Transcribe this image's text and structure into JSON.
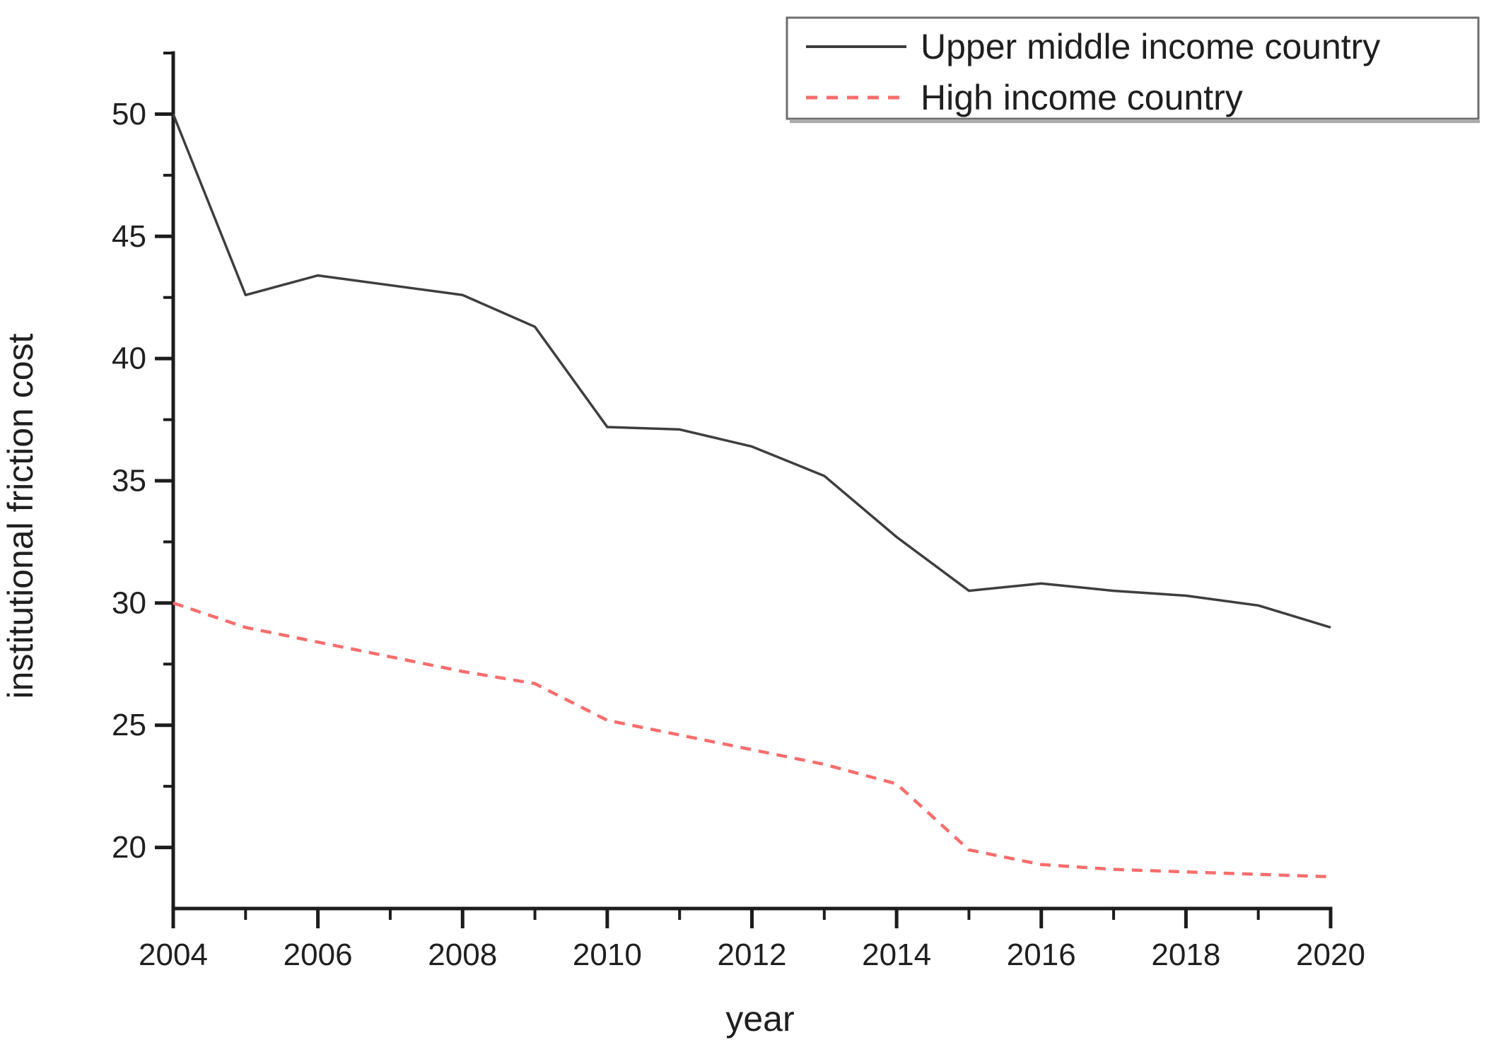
{
  "chart_data": {
    "type": "line",
    "title": "",
    "xlabel": "year",
    "ylabel": "institutional friction cost",
    "x": [
      2004,
      2005,
      2006,
      2007,
      2008,
      2009,
      2010,
      2011,
      2012,
      2013,
      2014,
      2015,
      2016,
      2017,
      2018,
      2019,
      2020
    ],
    "series": [
      {
        "name": "Upper middle income country",
        "color": "#3e3e3e",
        "line_style": "solid",
        "line_width": 3.5,
        "values": [
          50.0,
          42.6,
          43.4,
          43.0,
          42.6,
          41.3,
          37.2,
          37.1,
          36.4,
          35.2,
          32.7,
          30.5,
          30.8,
          30.5,
          30.3,
          29.9,
          29.0
        ]
      },
      {
        "name": "High income country",
        "color": "#f76d6d",
        "line_style": "dashed",
        "line_width": 4.5,
        "values": [
          30.0,
          29.0,
          28.4,
          27.8,
          27.2,
          26.7,
          25.2,
          24.6,
          24.0,
          23.4,
          22.6,
          19.9,
          19.3,
          19.1,
          19.0,
          18.9,
          18.8
        ]
      }
    ],
    "xlim": [
      2004,
      2020
    ],
    "ylim": [
      17.5,
      52.5
    ],
    "x_major_ticks": [
      2004,
      2006,
      2008,
      2010,
      2012,
      2014,
      2016,
      2018,
      2020
    ],
    "x_minor_ticks": [
      2005,
      2007,
      2009,
      2011,
      2013,
      2015,
      2017,
      2019
    ],
    "y_major_ticks": [
      20,
      25,
      30,
      35,
      40,
      45,
      50
    ],
    "y_minor_ticks": [
      22.5,
      27.5,
      32.5,
      37.5,
      42.5,
      47.5,
      52.5
    ],
    "grid": false,
    "legend_position": "top-right"
  },
  "style": {
    "axis_color": "#1c1c1c",
    "text_color": "#1f1f1f",
    "legend_border_color": "#6e6e6e",
    "legend_shadow_color": "#aaaaaa",
    "background": "#ffffff"
  }
}
